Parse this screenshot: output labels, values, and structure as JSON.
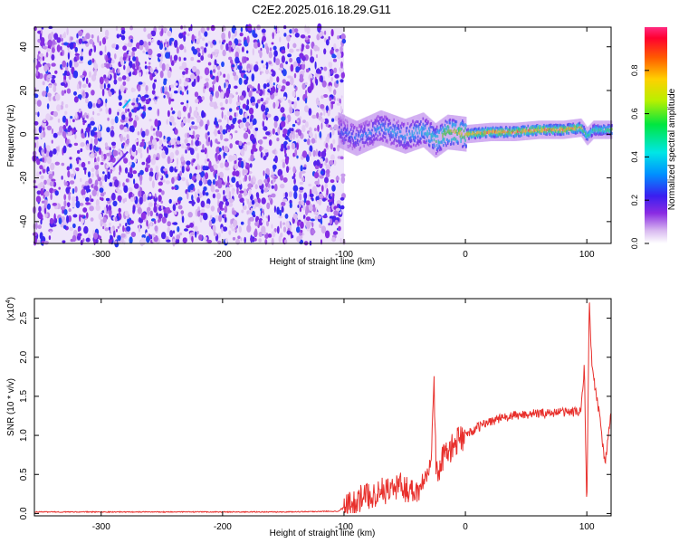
{
  "title": "C2E2.2025.016.18.29.G11",
  "colors": {
    "snr_line": "#e8302c",
    "axis": "#000000"
  },
  "chart_data": [
    {
      "type": "heatmap",
      "xlabel": "Height of straight line (km)",
      "ylabel": "Frequency (Hz)",
      "xlim": [
        -355,
        120
      ],
      "ylim": [
        -50,
        49
      ],
      "xticks": [
        -300,
        -200,
        -100,
        0,
        100
      ],
      "yticks": [
        -40,
        -20,
        0,
        20,
        40
      ],
      "colorbar_label": "Normalized spectral amplitude",
      "colorbar_range": [
        0,
        1
      ],
      "colorbar_ticks": [
        0.0,
        0.2,
        0.4,
        0.6,
        0.8
      ],
      "noise_region_x": [
        -355,
        -100
      ],
      "signal_track": {
        "x": [
          -105,
          -90,
          -70,
          -50,
          -35,
          -25,
          -15,
          0,
          20,
          40,
          60,
          80,
          95,
          100,
          105,
          120
        ],
        "y": [
          2,
          -2,
          3,
          -1,
          2,
          -3,
          1,
          0,
          1,
          1,
          2,
          2,
          3,
          -1,
          2,
          2
        ],
        "amplitude": [
          0.3,
          0.35,
          0.4,
          0.45,
          0.5,
          0.6,
          0.75,
          0.85,
          0.9,
          0.95,
          0.95,
          0.95,
          0.85,
          0.6,
          0.6,
          0.7
        ]
      }
    },
    {
      "type": "line",
      "xlabel": "Height of straight line (km)",
      "ylabel": "SNR (10 * v/v)",
      "y_multiplier": "(x10",
      "y_multiplier_exp": "4",
      "xlim": [
        -355,
        120
      ],
      "ylim": [
        -0.03,
        2.75
      ],
      "xticks": [
        -300,
        -200,
        -100,
        0,
        100
      ],
      "yticks": [
        0.0,
        0.5,
        1.0,
        1.5,
        2.0,
        2.5
      ],
      "series": [
        {
          "x": [
            -355,
            -300,
            -250,
            -200,
            -150,
            -105,
            -95,
            -85,
            -75,
            -65,
            -55,
            -45,
            -38,
            -32,
            -28,
            -26,
            -24,
            -20,
            -15,
            -10,
            -5,
            0,
            10,
            20,
            30,
            40,
            50,
            60,
            70,
            80,
            90,
            95,
            98,
            100,
            102,
            104,
            106,
            110,
            115,
            120
          ],
          "y": [
            0.02,
            0.02,
            0.02,
            0.02,
            0.02,
            0.03,
            0.12,
            0.2,
            0.25,
            0.3,
            0.35,
            0.3,
            0.3,
            0.55,
            0.8,
            1.72,
            0.5,
            0.65,
            0.8,
            0.85,
            0.95,
            1.0,
            1.1,
            1.18,
            1.22,
            1.25,
            1.27,
            1.28,
            1.29,
            1.3,
            1.3,
            1.3,
            1.9,
            0.0,
            2.75,
            1.95,
            1.7,
            1.3,
            0.65,
            1.27
          ]
        }
      ]
    }
  ]
}
